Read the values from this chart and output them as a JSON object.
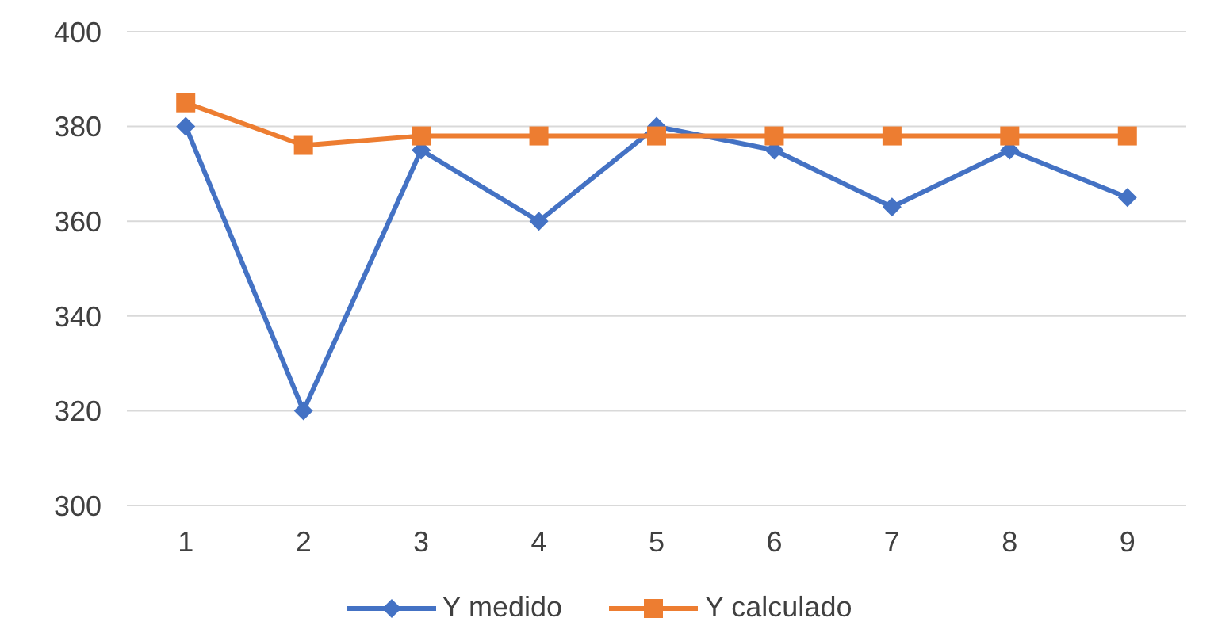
{
  "chart_data": {
    "type": "line",
    "categories": [
      "1",
      "2",
      "3",
      "4",
      "5",
      "6",
      "7",
      "8",
      "9"
    ],
    "series": [
      {
        "name": "Y medido",
        "color": "#4472c4",
        "marker": "diamond",
        "values": [
          380,
          320,
          375,
          360,
          380,
          375,
          363,
          375,
          365
        ]
      },
      {
        "name": "Y calculado",
        "color": "#ed7d31",
        "marker": "square",
        "values": [
          385,
          376,
          378,
          378,
          378,
          378,
          378,
          378,
          378
        ]
      }
    ],
    "ylim": [
      300,
      400
    ],
    "yticks": [
      300,
      320,
      340,
      360,
      380,
      400
    ],
    "grid": "y",
    "legend": "bottom"
  }
}
